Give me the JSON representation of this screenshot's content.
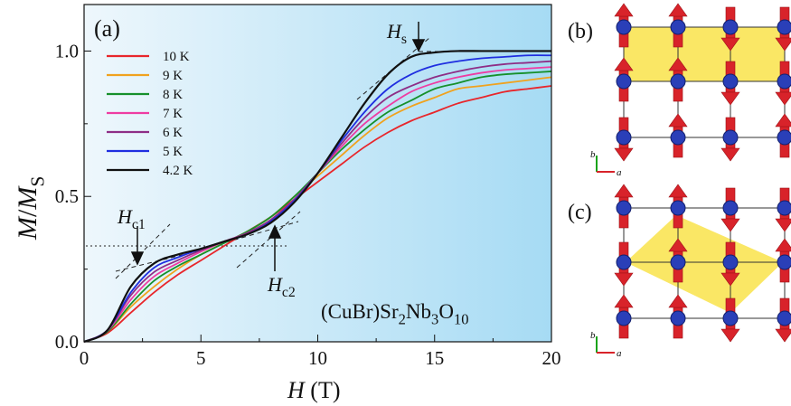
{
  "chart_data": {
    "type": "line",
    "panel_label": "(a)",
    "xlabel": [
      {
        "text": "H",
        "italic": true
      },
      {
        "text": " (T)"
      }
    ],
    "ylabel": [
      {
        "text": "M",
        "italic": true
      },
      {
        "text": "/"
      },
      {
        "text": "M",
        "italic": true
      },
      {
        "text": "S",
        "sub": true
      }
    ],
    "x": [
      0,
      1,
      2,
      3,
      4,
      5,
      6,
      7,
      8,
      9,
      10,
      11,
      12,
      13,
      14,
      15,
      16,
      17,
      18,
      19,
      20
    ],
    "xlim": [
      0,
      20
    ],
    "ylim": [
      0,
      1.16
    ],
    "xticks": [
      0,
      5,
      10,
      15,
      20
    ],
    "yticks": [
      {
        "value": 0,
        "label": "0.0"
      },
      0.5,
      {
        "value": 1,
        "label": "1.0"
      }
    ],
    "series": [
      {
        "name": "10 K",
        "color": "#e8262b",
        "values": [
          0,
          0.03,
          0.1,
          0.17,
          0.23,
          0.28,
          0.33,
          0.38,
          0.43,
          0.49,
          0.55,
          0.61,
          0.67,
          0.72,
          0.76,
          0.79,
          0.82,
          0.84,
          0.86,
          0.87,
          0.88
        ]
      },
      {
        "name": "9 K",
        "color": "#f0a21e",
        "values": [
          0,
          0.035,
          0.12,
          0.19,
          0.25,
          0.3,
          0.34,
          0.38,
          0.43,
          0.5,
          0.57,
          0.64,
          0.71,
          0.77,
          0.81,
          0.84,
          0.87,
          0.88,
          0.89,
          0.9,
          0.91
        ]
      },
      {
        "name": "8 K",
        "color": "#16902b",
        "values": [
          0,
          0.035,
          0.13,
          0.21,
          0.26,
          0.3,
          0.34,
          0.38,
          0.43,
          0.5,
          0.58,
          0.66,
          0.73,
          0.79,
          0.83,
          0.87,
          0.89,
          0.91,
          0.92,
          0.925,
          0.93
        ]
      },
      {
        "name": "7 K",
        "color": "#ee3ca2",
        "values": [
          0,
          0.038,
          0.145,
          0.225,
          0.27,
          0.31,
          0.345,
          0.375,
          0.42,
          0.49,
          0.58,
          0.67,
          0.75,
          0.81,
          0.86,
          0.89,
          0.91,
          0.925,
          0.935,
          0.94,
          0.945
        ]
      },
      {
        "name": "6 K",
        "color": "#8e2d86",
        "values": [
          0,
          0.04,
          0.16,
          0.24,
          0.28,
          0.315,
          0.345,
          0.375,
          0.42,
          0.49,
          0.58,
          0.68,
          0.77,
          0.84,
          0.88,
          0.91,
          0.93,
          0.945,
          0.955,
          0.96,
          0.965
        ]
      },
      {
        "name": "5 K",
        "color": "#1f2ee0",
        "values": [
          0,
          0.04,
          0.17,
          0.255,
          0.29,
          0.32,
          0.345,
          0.37,
          0.415,
          0.485,
          0.58,
          0.69,
          0.79,
          0.87,
          0.92,
          0.95,
          0.965,
          0.975,
          0.98,
          0.985,
          0.985
        ]
      },
      {
        "name": "4.2 K",
        "color": "#111111",
        "values": [
          0,
          0.04,
          0.19,
          0.27,
          0.3,
          0.32,
          0.345,
          0.37,
          0.41,
          0.48,
          0.58,
          0.7,
          0.82,
          0.92,
          0.98,
          0.995,
          1.0,
          1.0,
          1.0,
          1.0,
          1.0
        ]
      }
    ],
    "annotations": [
      [
        {
          "text": "H",
          "italic": true
        },
        {
          "text": "s",
          "sub": true
        }
      ],
      [
        {
          "text": "H",
          "italic": true
        },
        {
          "text": "c1",
          "sub": true
        }
      ],
      [
        {
          "text": "H",
          "italic": true
        },
        {
          "text": "c2",
          "sub": true
        }
      ]
    ],
    "formula": [
      {
        "text": "(CuBr)Sr"
      },
      {
        "text": "2",
        "sub": true
      },
      {
        "text": "Nb"
      },
      {
        "text": "3",
        "sub": true
      },
      {
        "text": "O"
      },
      {
        "text": "10",
        "sub": true
      }
    ]
  },
  "structure_panels": [
    {
      "label": "(b)",
      "axis_labels": [
        "b",
        "a"
      ]
    },
    {
      "label": "(c)",
      "axis_labels": [
        "b",
        "a"
      ]
    }
  ]
}
